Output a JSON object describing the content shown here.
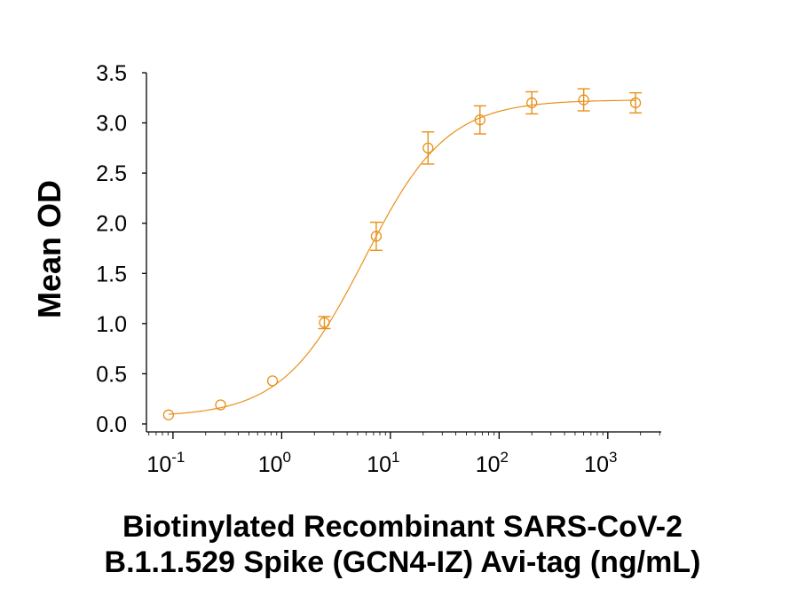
{
  "chart_data": {
    "type": "scatter",
    "xlabel": "Biotinylated Recombinant SARS-CoV-2 B.1.1.529 Spike (GCN4-IZ) Avi-tag (ng/mL)",
    "xlabel_lines": [
      "Biotinylated Recombinant SARS-CoV-2",
      "B.1.1.529 Spike (GCN4-IZ) Avi-tag (ng/mL)"
    ],
    "ylabel": "Mean OD",
    "x_scale": "log",
    "xlim": [
      0.057,
      3100
    ],
    "ylim": [
      -0.08,
      3.5
    ],
    "x_ticks": [
      {
        "base": "10",
        "exp": "-1",
        "value": 0.1
      },
      {
        "base": "10",
        "exp": "0",
        "value": 1
      },
      {
        "base": "10",
        "exp": "1",
        "value": 10
      },
      {
        "base": "10",
        "exp": "2",
        "value": 100
      },
      {
        "base": "10",
        "exp": "3",
        "value": 1000
      }
    ],
    "y_ticks": [
      "0.0",
      "0.5",
      "1.0",
      "1.5",
      "2.0",
      "2.5",
      "3.0",
      "3.5"
    ],
    "grid": false,
    "color": "#E8901A",
    "marker": "open-circle",
    "fit": "sigmoidal curve",
    "x": [
      0.091,
      0.274,
      0.823,
      2.47,
      7.41,
      22.2,
      66.7,
      200,
      600,
      1800
    ],
    "y": [
      0.09,
      0.19,
      0.43,
      1.01,
      1.87,
      2.75,
      3.03,
      3.2,
      3.23,
      3.2
    ],
    "error": [
      0.0,
      0.0,
      0.0,
      0.06,
      0.14,
      0.16,
      0.14,
      0.11,
      0.11,
      0.1
    ]
  }
}
